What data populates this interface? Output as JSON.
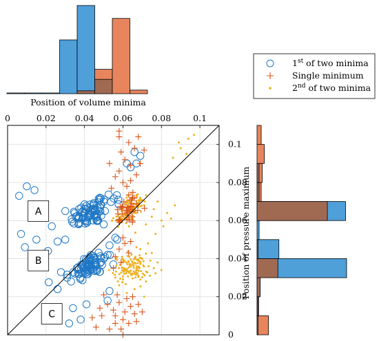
{
  "colors": {
    "first_minimum": "#1f77c4",
    "single_minimum": "#d9541a",
    "second_minimum": "#edb120",
    "hist_blue_fill": "#4f9fd9",
    "hist_orange_fill": "#e8855d",
    "hist_overlap_fill": "#a06a52",
    "grid": "#dcdcdc"
  },
  "chart_data": [
    {
      "id": "scatter",
      "type": "scatter",
      "xlabel": "Position of volume minima",
      "ylabel": "Position of pressure maximum",
      "xlim": [
        0,
        0.11
      ],
      "ylim": [
        0,
        0.11
      ],
      "x_ticks": [
        "0",
        "0.02",
        "0.04",
        "0.06",
        "0.08",
        "0.1"
      ],
      "y_ticks": [
        "0",
        "0.02",
        "0.04",
        "0.06",
        "0.08",
        "0.1"
      ],
      "x_tick_values": [
        0,
        0.02,
        0.04,
        0.06,
        0.08,
        0.1
      ],
      "y_tick_values": [
        0,
        0.02,
        0.04,
        0.06,
        0.08,
        0.1
      ],
      "x_axis_position": "top",
      "y_axis_position": "right",
      "grid": true,
      "diagonal_line": [
        [
          0,
          0
        ],
        [
          0.11,
          0.11
        ]
      ],
      "region_labels": [
        {
          "text": "A",
          "x": 0.016,
          "y": 0.065
        },
        {
          "text": "B",
          "x": 0.016,
          "y": 0.039
        },
        {
          "text": "C",
          "x": 0.023,
          "y": 0.011
        }
      ],
      "series": [
        {
          "name": "1st of two minima",
          "name_base": "1",
          "name_sup": "st",
          "name_rest": " of two minima",
          "marker": "circle",
          "color_key": "first_minimum",
          "clusters": [
            {
              "cx": 0.043,
              "cy": 0.064,
              "sx": 0.0055,
              "sy": 0.0032,
              "n": 75,
              "rot": 0.45
            },
            {
              "cx": 0.042,
              "cy": 0.036,
              "sx": 0.0055,
              "sy": 0.003,
              "n": 75,
              "rot": 0.45
            },
            {
              "cx": 0.055,
              "cy": 0.072,
              "sx": 0.003,
              "sy": 0.002,
              "n": 6,
              "rot": 0
            }
          ],
          "points": [
            [
              0.01,
              0.078
            ],
            [
              0.006,
              0.073
            ],
            [
              0.014,
              0.076
            ],
            [
              0.007,
              0.053
            ],
            [
              0.015,
              0.05
            ],
            [
              0.009,
              0.046
            ],
            [
              0.026,
              0.049
            ],
            [
              0.03,
              0.05
            ],
            [
              0.023,
              0.057
            ],
            [
              0.021,
              0.044
            ],
            [
              0.026,
              0.024
            ],
            [
              0.024,
              0.012
            ],
            [
              0.034,
              0.014
            ],
            [
              0.038,
              0.008
            ],
            [
              0.032,
              0.006
            ],
            [
              0.041,
              0.016
            ],
            [
              0.052,
              0.018
            ],
            [
              0.053,
              0.023
            ],
            [
              0.056,
              0.051
            ],
            [
              0.057,
              0.05
            ],
            [
              0.062,
              0.09
            ],
            [
              0.066,
              0.096
            ],
            [
              0.067,
              0.09
            ],
            [
              0.069,
              0.094
            ],
            [
              0.064,
              0.088
            ],
            [
              0.05,
              0.04
            ],
            [
              0.052,
              0.042
            ],
            [
              0.031,
              0.03
            ],
            [
              0.033,
              0.028
            ],
            [
              0.055,
              0.037
            ],
            [
              0.05,
              0.058
            ],
            [
              0.03,
              0.065
            ],
            [
              0.048,
              0.072
            ],
            [
              0.05,
              0.07
            ],
            [
              0.053,
              0.047
            ]
          ]
        },
        {
          "name": "Single minimum",
          "name_base": "Single minimum",
          "name_sup": "",
          "name_rest": "",
          "marker": "plus",
          "color_key": "single_minimum",
          "clusters": [
            {
              "cx": 0.063,
              "cy": 0.066,
              "sx": 0.0035,
              "sy": 0.0025,
              "n": 40,
              "rot": 0.75
            }
          ],
          "points": [
            [
              0.056,
              0.113
            ],
            [
              0.062,
              0.112
            ],
            [
              0.058,
              0.104
            ],
            [
              0.063,
              0.101
            ],
            [
              0.068,
              0.104
            ],
            [
              0.066,
              0.098
            ],
            [
              0.071,
              0.097
            ],
            [
              0.059,
              0.096
            ],
            [
              0.061,
              0.092
            ],
            [
              0.064,
              0.089
            ],
            [
              0.058,
              0.086
            ],
            [
              0.056,
              0.083
            ],
            [
              0.067,
              0.084
            ],
            [
              0.06,
              0.08
            ],
            [
              0.054,
              0.077
            ],
            [
              0.064,
              0.081
            ],
            [
              0.058,
              0.107
            ],
            [
              0.053,
              0.09
            ],
            [
              0.069,
              0.09
            ],
            [
              0.062,
              0.078
            ],
            [
              0.058,
              0.045
            ],
            [
              0.061,
              0.048
            ],
            [
              0.056,
              0.041
            ],
            [
              0.059,
              0.038
            ],
            [
              0.064,
              0.049
            ],
            [
              0.055,
              0.035
            ],
            [
              0.063,
              0.043
            ],
            [
              0.06,
              0.051
            ],
            [
              0.052,
              0.016
            ],
            [
              0.055,
              0.013
            ],
            [
              0.058,
              0.017
            ],
            [
              0.061,
              0.012
            ],
            [
              0.064,
              0.015
            ],
            [
              0.066,
              0.011
            ],
            [
              0.06,
              0.008
            ],
            [
              0.056,
              0.006
            ],
            [
              0.063,
              0.006
            ],
            [
              0.049,
              0.01
            ],
            [
              0.046,
              0.004
            ],
            [
              0.053,
              0.003
            ],
            [
              0.059,
              0.003
            ],
            [
              0.067,
              0.007
            ],
            [
              0.062,
              0.019
            ],
            [
              0.057,
              0.021
            ],
            [
              0.05,
              0.021
            ],
            [
              0.065,
              0.02
            ],
            [
              0.048,
              0.014
            ],
            [
              0.056,
              0.01
            ],
            [
              0.06,
              0.0
            ],
            [
              0.068,
              0.016
            ],
            [
              0.044,
              0.009
            ],
            [
              0.07,
              0.012
            ]
          ]
        },
        {
          "name": "2nd of two minima",
          "name_base": "2",
          "name_sup": "nd",
          "name_rest": " of two minima",
          "marker": "dot",
          "color_key": "second_minimum",
          "clusters": [
            {
              "cx": 0.064,
              "cy": 0.066,
              "sx": 0.0045,
              "sy": 0.0025,
              "n": 130,
              "rot": 0.78
            },
            {
              "cx": 0.064,
              "cy": 0.035,
              "sx": 0.0045,
              "sy": 0.0035,
              "n": 130,
              "rot": 0.1
            }
          ],
          "points": [
            [
              0.075,
              0.062
            ],
            [
              0.08,
              0.06
            ],
            [
              0.083,
              0.064
            ],
            [
              0.085,
              0.061
            ],
            [
              0.078,
              0.07
            ],
            [
              0.076,
              0.066
            ],
            [
              0.081,
              0.057
            ],
            [
              0.072,
              0.058
            ],
            [
              0.087,
              0.068
            ],
            [
              0.077,
              0.053
            ],
            [
              0.09,
              0.098
            ],
            [
              0.094,
              0.103
            ],
            [
              0.089,
              0.101
            ],
            [
              0.093,
              0.095
            ],
            [
              0.097,
              0.105
            ],
            [
              0.086,
              0.093
            ],
            [
              0.072,
              0.028
            ],
            [
              0.074,
              0.031
            ],
            [
              0.076,
              0.035
            ],
            [
              0.071,
              0.02
            ],
            [
              0.066,
              0.024
            ],
            [
              0.07,
              0.04
            ],
            [
              0.075,
              0.043
            ],
            [
              0.058,
              0.026
            ],
            [
              0.062,
              0.022
            ],
            [
              0.078,
              0.038
            ],
            [
              0.08,
              0.034
            ],
            [
              0.069,
              0.045
            ],
            [
              0.067,
              0.046
            ],
            [
              0.073,
              0.048
            ]
          ]
        }
      ]
    },
    {
      "id": "top_histogram",
      "type": "bar",
      "orientation": "vertical",
      "bin_edges": [
        0,
        0.01,
        0.02,
        0.03,
        0.04,
        0.05,
        0.06,
        0.07,
        0.08
      ],
      "series": [
        {
          "name": "1st of two minima",
          "color_key": "hist_blue_fill",
          "values": [
            1,
            1,
            1,
            75,
            123,
            20,
            0,
            0
          ]
        },
        {
          "name": "Single minimum",
          "color_key": "hist_orange_fill",
          "values": [
            0,
            0,
            0,
            0,
            4,
            34,
            105,
            5
          ]
        }
      ]
    },
    {
      "id": "right_histogram",
      "type": "bar",
      "orientation": "horizontal",
      "bin_edges": [
        0,
        0.01,
        0.02,
        0.03,
        0.04,
        0.05,
        0.06,
        0.07,
        0.08,
        0.09,
        0.1,
        0.11
      ],
      "series": [
        {
          "name": "1st of two minima",
          "color_key": "hist_blue_fill",
          "values": [
            2,
            2,
            6,
            172,
            42,
            4,
            170,
            4,
            4,
            0,
            0
          ]
        },
        {
          "name": "Single minimum",
          "color_key": "hist_orange_fill",
          "values": [
            22,
            3,
            6,
            40,
            2,
            0,
            135,
            8,
            10,
            14,
            8
          ]
        }
      ]
    }
  ]
}
